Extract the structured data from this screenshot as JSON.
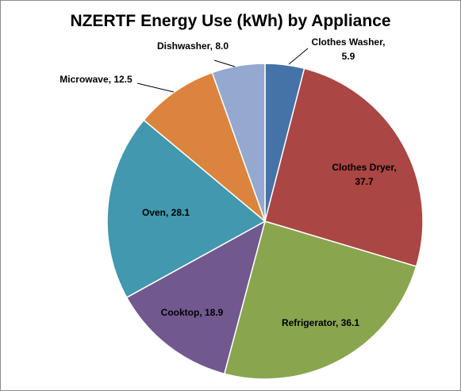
{
  "chart_data": {
    "type": "pie",
    "title": "NZERTF Energy Use (kWh) by Appliance",
    "categories": [
      "Clothes Washer",
      "Clothes Dryer",
      "Refrigerator",
      "Cooktop",
      "Oven",
      "Microwave",
      "Dishwasher"
    ],
    "values": [
      5.9,
      37.7,
      36.1,
      18.9,
      28.1,
      12.5,
      8.0
    ],
    "value_labels": [
      "5.9",
      "37.7",
      "36.1",
      "18.9",
      "28.1",
      "12.5",
      "8.0"
    ],
    "colors": [
      "#4572a7",
      "#aa4643",
      "#89a54e",
      "#71588f",
      "#4198af",
      "#db843d",
      "#93a9cf"
    ],
    "legend": "none",
    "data_labels": "category, value"
  }
}
